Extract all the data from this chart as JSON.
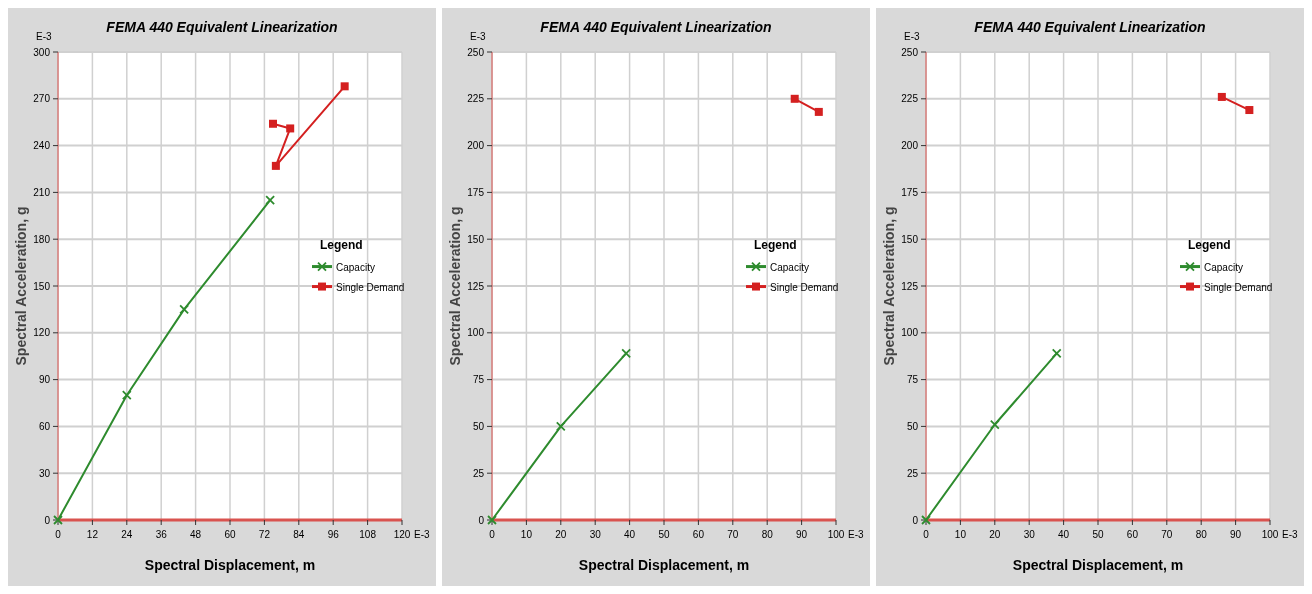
{
  "chart_data": [
    {
      "type": "line",
      "title": "FEMA 440 Equivalent Linearization",
      "xlabel": "Spectral Displacement, m",
      "ylabel": "Spectral Acceleration, g",
      "legend_title": "Legend",
      "legend": "right",
      "grid": true,
      "line_style": "solid",
      "annotations": [
        "E-3",
        "E-3"
      ],
      "xlim": [
        0,
        120
      ],
      "xticks": [
        0,
        12,
        24,
        36,
        48,
        60,
        72,
        84,
        96,
        108,
        120
      ],
      "ylim": [
        0,
        300
      ],
      "yticks": [
        0,
        30,
        60,
        90,
        120,
        150,
        180,
        210,
        240,
        270,
        300
      ],
      "series": [
        {
          "name": "Capacity",
          "color": "#2e8b2e",
          "marker": "cross",
          "x": [
            0,
            24,
            44,
            74
          ],
          "values": [
            0,
            80,
            135,
            205
          ]
        },
        {
          "name": "Single Demand",
          "color": "#d42020",
          "marker": "square",
          "x": [
            75,
            81,
            76,
            100
          ],
          "values": [
            254,
            251,
            227,
            278
          ]
        }
      ]
    },
    {
      "type": "line",
      "title": "FEMA 440 Equivalent Linearization",
      "xlabel": "Spectral Displacement, m",
      "ylabel": "Spectral Acceleration, g",
      "legend_title": "Legend",
      "legend": "right",
      "grid": true,
      "line_style": "solid",
      "annotations": [
        "E-3",
        "E-3"
      ],
      "xlim": [
        0,
        100
      ],
      "xticks": [
        0,
        10,
        20,
        30,
        40,
        50,
        60,
        70,
        80,
        90,
        100
      ],
      "ylim": [
        0,
        250
      ],
      "yticks": [
        0,
        25,
        50,
        75,
        100,
        125,
        150,
        175,
        200,
        225,
        250
      ],
      "series": [
        {
          "name": "Capacity",
          "color": "#2e8b2e",
          "marker": "cross",
          "x": [
            0,
            20,
            39
          ],
          "values": [
            0,
            50,
            89
          ]
        },
        {
          "name": "Single Demand",
          "color": "#d42020",
          "marker": "square",
          "x": [
            88,
            95
          ],
          "values": [
            225,
            218
          ]
        }
      ]
    },
    {
      "type": "line",
      "title": "FEMA 440 Equivalent Linearization",
      "xlabel": "Spectral Displacement, m",
      "ylabel": "Spectral Acceleration, g",
      "legend_title": "Legend",
      "legend": "right",
      "grid": true,
      "line_style": "solid",
      "annotations": [
        "E-3",
        "E-3"
      ],
      "xlim": [
        0,
        100
      ],
      "xticks": [
        0,
        10,
        20,
        30,
        40,
        50,
        60,
        70,
        80,
        90,
        100
      ],
      "ylim": [
        0,
        250
      ],
      "yticks": [
        0,
        25,
        50,
        75,
        100,
        125,
        150,
        175,
        200,
        225,
        250
      ],
      "series": [
        {
          "name": "Capacity",
          "color": "#2e8b2e",
          "marker": "cross",
          "x": [
            0,
            20,
            38
          ],
          "values": [
            0,
            51,
            89
          ]
        },
        {
          "name": "Single Demand",
          "color": "#d42020",
          "marker": "square",
          "x": [
            86,
            94
          ],
          "values": [
            226,
            219
          ]
        }
      ]
    }
  ]
}
